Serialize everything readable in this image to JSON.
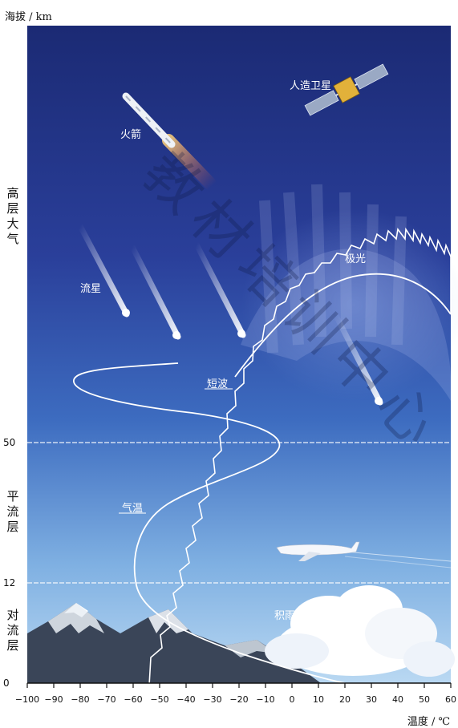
{
  "axis": {
    "y_title": "海拔 / km",
    "x_title": "温度 / ℃",
    "y_ticks": [
      "50",
      "12",
      "0"
    ],
    "x_ticks": [
      "−100",
      "−90",
      "−80",
      "−70",
      "−60",
      "−50",
      "−40",
      "−30",
      "−20",
      "−10",
      "0",
      "10",
      "20",
      "30",
      "40",
      "50",
      "60"
    ]
  },
  "layers": {
    "upper": [
      "高",
      "层",
      "大",
      "气"
    ],
    "strat": [
      "平",
      "流",
      "层"
    ],
    "tropo": [
      "对",
      "流",
      "层"
    ]
  },
  "labels": {
    "satellite": "人造卫星",
    "rocket": "火箭",
    "meteor": "流星",
    "aurora": "极光",
    "shortwave": "短波",
    "temperature": "气温",
    "cloud": "积雨云"
  },
  "colors": {
    "sky_top": "#1b2c78",
    "sky_mid": "#3760b5",
    "sky_low": "#86b8e6",
    "line": "#ffffff"
  },
  "watermark": "教材培训中心"
}
